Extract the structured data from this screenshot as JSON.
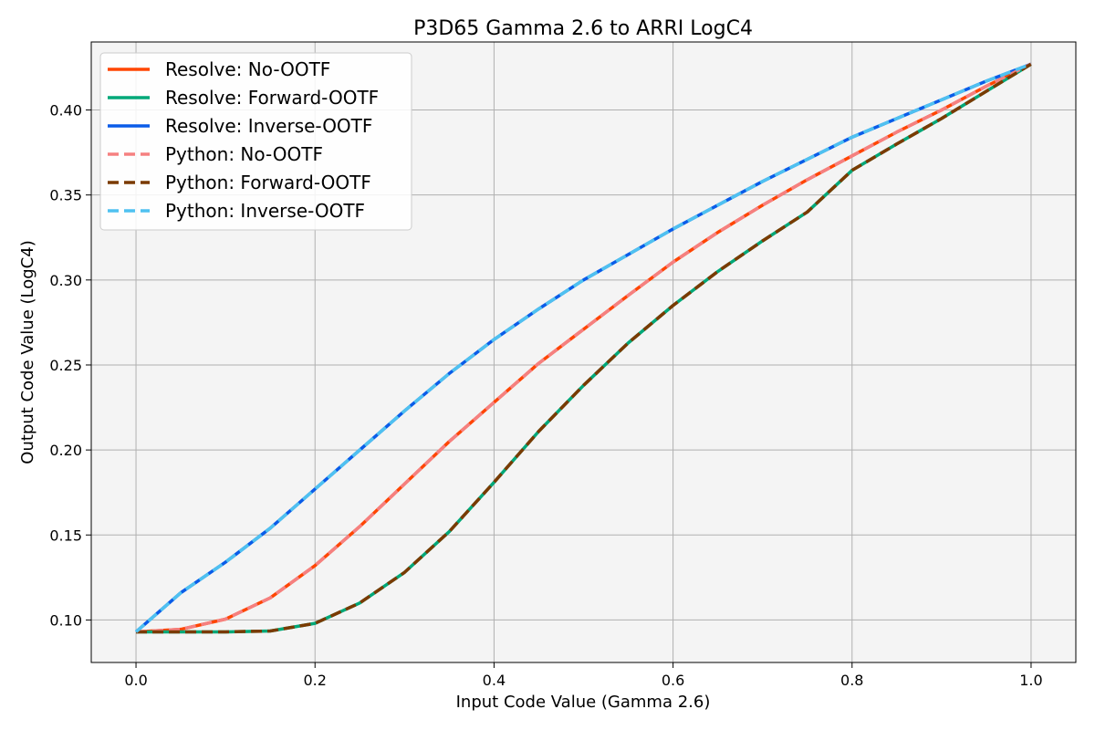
{
  "chart_data": {
    "type": "line",
    "title": "P3D65 Gamma 2.6 to ARRI LogC4",
    "xlabel": "Input Code Value (Gamma 2.6)",
    "ylabel": "Output Code Value (LogC4)",
    "xlim": [
      -0.05,
      1.05
    ],
    "ylim": [
      0.075,
      0.44
    ],
    "xticks": [
      0.0,
      0.2,
      0.4,
      0.6,
      0.8,
      1.0
    ],
    "xtick_labels": [
      "0.0",
      "0.2",
      "0.4",
      "0.6",
      "0.8",
      "1.0"
    ],
    "yticks": [
      0.1,
      0.15,
      0.2,
      0.25,
      0.3,
      0.35,
      0.4
    ],
    "ytick_labels": [
      "0.10",
      "0.15",
      "0.20",
      "0.25",
      "0.30",
      "0.35",
      "0.40"
    ],
    "grid": true,
    "legend_position": "top-left",
    "background": "#f4f4f4",
    "x": [
      0.0,
      0.05,
      0.1,
      0.15,
      0.2,
      0.25,
      0.3,
      0.35,
      0.4,
      0.45,
      0.5,
      0.55,
      0.6,
      0.65,
      0.7,
      0.75,
      0.8,
      0.85,
      0.9,
      0.95,
      1.0
    ],
    "series": [
      {
        "name": "Resolve: No-OOTF",
        "color": "#ff4500",
        "style": "solid",
        "linewidth": 3.5,
        "values": [
          0.093,
          0.0945,
          0.1005,
          0.113,
          0.132,
          0.155,
          0.18,
          0.205,
          0.228,
          0.251,
          0.271,
          0.291,
          0.3105,
          0.328,
          0.344,
          0.359,
          0.373,
          0.387,
          0.4,
          0.414,
          0.427
        ]
      },
      {
        "name": "Resolve: Forward-OOTF",
        "color": "#00a878",
        "style": "solid",
        "linewidth": 3.5,
        "values": [
          0.093,
          0.093,
          0.093,
          0.0935,
          0.098,
          0.11,
          0.128,
          0.152,
          0.181,
          0.211,
          0.238,
          0.263,
          0.285,
          0.305,
          0.323,
          0.34,
          0.3645,
          0.38,
          0.395,
          0.411,
          0.427
        ]
      },
      {
        "name": "Resolve: Inverse-OOTF",
        "color": "#0a5ce8",
        "style": "solid",
        "linewidth": 3.5,
        "values": [
          0.093,
          0.116,
          0.134,
          0.154,
          0.177,
          0.2,
          0.223,
          0.245,
          0.265,
          0.283,
          0.3,
          0.315,
          0.33,
          0.344,
          0.358,
          0.371,
          0.384,
          0.395,
          0.406,
          0.417,
          0.427
        ]
      },
      {
        "name": "Python: No-OOTF",
        "color": "#f58080",
        "style": "dashed",
        "linewidth": 3.5,
        "values": [
          0.093,
          0.0945,
          0.1005,
          0.113,
          0.132,
          0.155,
          0.18,
          0.205,
          0.228,
          0.251,
          0.271,
          0.291,
          0.3105,
          0.328,
          0.344,
          0.359,
          0.373,
          0.387,
          0.4,
          0.414,
          0.427
        ]
      },
      {
        "name": "Python: Forward-OOTF",
        "color": "#7a3a00",
        "style": "dashed",
        "linewidth": 3.5,
        "values": [
          0.093,
          0.093,
          0.093,
          0.0935,
          0.098,
          0.11,
          0.128,
          0.152,
          0.181,
          0.211,
          0.238,
          0.263,
          0.285,
          0.305,
          0.323,
          0.34,
          0.3645,
          0.38,
          0.395,
          0.411,
          0.427
        ]
      },
      {
        "name": "Python: Inverse-OOTF",
        "color": "#4fc1f0",
        "style": "dashed",
        "linewidth": 3.5,
        "values": [
          0.093,
          0.116,
          0.134,
          0.154,
          0.177,
          0.2,
          0.223,
          0.245,
          0.265,
          0.283,
          0.3,
          0.315,
          0.33,
          0.344,
          0.358,
          0.371,
          0.384,
          0.395,
          0.406,
          0.417,
          0.427
        ]
      }
    ]
  }
}
